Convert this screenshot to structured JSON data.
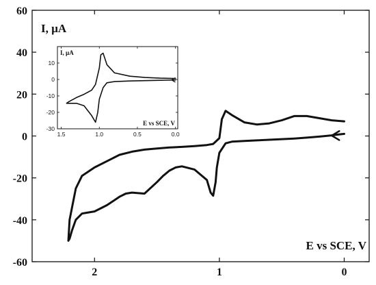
{
  "chart_data": [
    {
      "type": "line",
      "xlabel": "E vs SCE, V",
      "ylabel": "I, µA",
      "xlim": [
        2.5,
        -0.2
      ],
      "ylim": [
        -60,
        60
      ],
      "x_reversed": true,
      "xticks": [
        2,
        1,
        0
      ],
      "yticks": [
        -60,
        -40,
        -20,
        0,
        20,
        40,
        60
      ],
      "grid": false,
      "arrow": {
        "direction": "left",
        "at_x": 0.1,
        "at_y": 0.2
      },
      "series": [
        {
          "x": [
            0.0,
            0.05,
            0.1,
            0.2,
            0.3,
            0.4,
            0.5,
            0.6,
            0.7,
            0.8,
            0.9,
            0.95,
            1.0,
            1.02,
            1.03,
            1.05,
            1.07,
            1.1,
            1.2,
            1.3,
            1.35,
            1.4,
            1.45,
            1.5,
            1.6,
            1.7,
            1.75,
            1.8,
            1.9,
            2.0,
            2.05,
            2.1,
            2.15,
            2.18,
            2.2,
            2.21,
            2.2,
            2.15,
            2.1,
            2.0,
            1.9,
            1.8,
            1.7,
            1.6,
            1.5,
            1.4,
            1.3,
            1.2,
            1.1,
            1.05,
            1.0,
            0.99,
            0.98,
            0.95,
            0.9,
            0.8,
            0.7,
            0.6,
            0.5,
            0.4,
            0.3,
            0.2,
            0.1,
            0.0
          ],
          "y": [
            1.0,
            0.7,
            0.3,
            -0.3,
            -0.8,
            -1.2,
            -1.5,
            -1.8,
            -2.1,
            -2.4,
            -2.7,
            -3.5,
            -8,
            -15,
            -22,
            -28.5,
            -27,
            -21,
            -16,
            -14.5,
            -15,
            -16.5,
            -19,
            -22,
            -27.5,
            -27,
            -27.5,
            -29,
            -33,
            -36,
            -36.5,
            -37,
            -40,
            -45,
            -49,
            -50,
            -40,
            -25,
            -19,
            -15,
            -12,
            -9,
            -7.5,
            -6.5,
            -6,
            -5.5,
            -5.2,
            -4.8,
            -4.3,
            -3.8,
            -1,
            3.5,
            8,
            12,
            10,
            6.5,
            5.5,
            6,
            7.5,
            9.5,
            9.5,
            8.5,
            7.5,
            7
          ]
        }
      ]
    },
    {
      "type": "line",
      "xlabel": "E vs SCE, V",
      "ylabel": "I, µA",
      "xlim": [
        1.55,
        -0.03
      ],
      "ylim": [
        -30,
        20
      ],
      "x_reversed": true,
      "xticks": [
        1.5,
        1.0,
        0.5,
        0.0
      ],
      "xtick_labels": [
        "1.5",
        "1.0",
        "0.5",
        "0.0"
      ],
      "yticks": [
        -30,
        -20,
        -10,
        0,
        10
      ],
      "grid": false,
      "arrow": {
        "direction": "left",
        "at_x": 0.05,
        "at_y": -0.3
      },
      "series": [
        {
          "x": [
            0.0,
            0.1,
            0.2,
            0.4,
            0.6,
            0.8,
            0.9,
            0.95,
            1.0,
            1.02,
            1.05,
            1.1,
            1.2,
            1.3,
            1.4,
            1.43,
            1.4,
            1.3,
            1.2,
            1.1,
            1.05,
            1.0,
            0.98,
            0.95,
            0.9,
            0.8,
            0.6,
            0.4,
            0.2,
            0.0
          ],
          "y": [
            -0.3,
            -0.4,
            -0.5,
            -0.7,
            -0.9,
            -1.3,
            -2.0,
            -5,
            -12,
            -20,
            -26,
            -22,
            -16,
            -14.5,
            -14.5,
            -14.5,
            -13.5,
            -11,
            -9,
            -6.5,
            -3,
            7,
            15,
            16,
            9,
            4,
            2,
            1.2,
            0.8,
            0.6
          ]
        }
      ]
    }
  ]
}
